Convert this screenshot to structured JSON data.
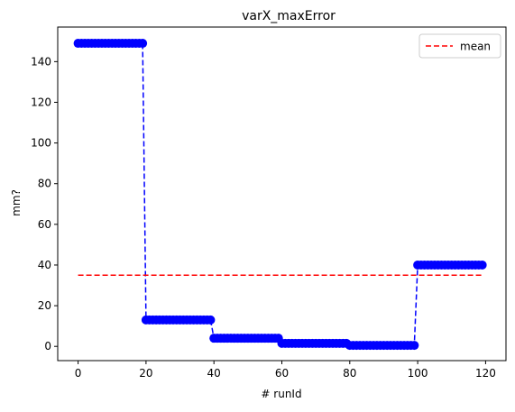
{
  "chart_data": {
    "type": "line",
    "title": "varX_maxError",
    "xlabel": "# runId",
    "ylabel": "mm?",
    "xlim": [
      -6,
      126
    ],
    "ylim": [
      -7,
      157
    ],
    "xticks": [
      0,
      20,
      40,
      60,
      80,
      100,
      120
    ],
    "yticks": [
      0,
      20,
      40,
      60,
      80,
      100,
      120,
      140
    ],
    "grid": false,
    "legend": {
      "placement": "top-right",
      "entries": [
        "mean"
      ]
    },
    "series": [
      {
        "style": "blue dashed line with circle markers",
        "color": "#0000ff",
        "segments": [
          {
            "x_start": 0,
            "x_end": 19,
            "y": 149
          },
          {
            "x_start": 20,
            "x_end": 39,
            "y": 13
          },
          {
            "x_start": 40,
            "x_end": 59,
            "y": 4
          },
          {
            "x_start": 60,
            "x_end": 79,
            "y": 1.5
          },
          {
            "x_start": 80,
            "x_end": 99,
            "y": 0.5
          },
          {
            "x_start": 100,
            "x_end": 119,
            "y": 40
          }
        ]
      },
      {
        "name": "mean",
        "style": "red dashed line",
        "color": "#ff0000",
        "x": [
          0,
          119
        ],
        "y": [
          35,
          35
        ]
      }
    ]
  }
}
